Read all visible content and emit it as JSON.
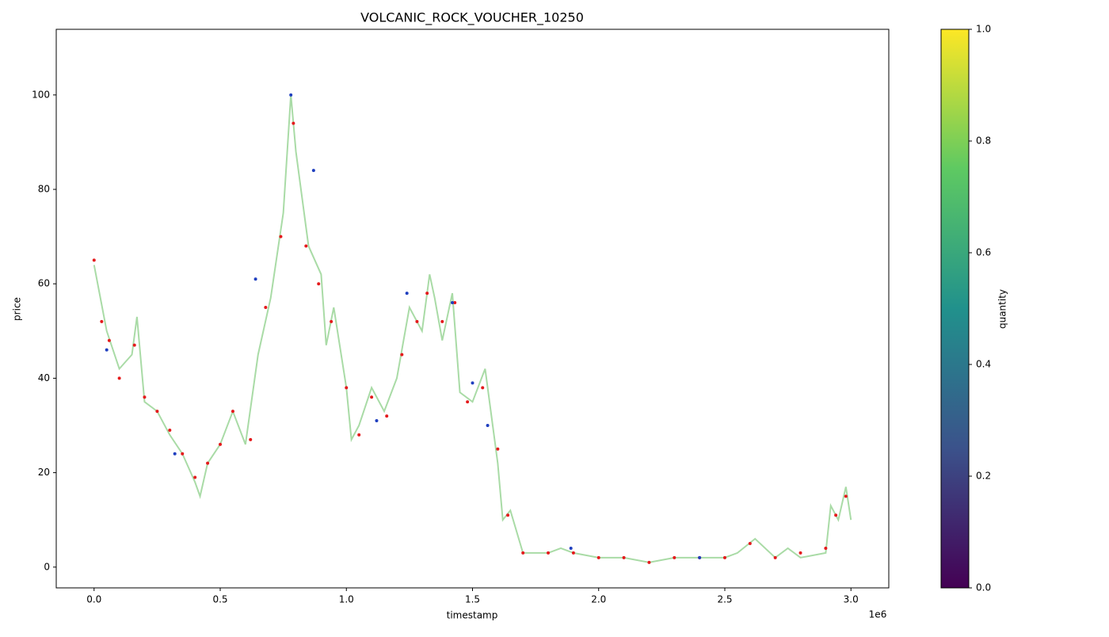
{
  "chart_data": {
    "type": "line",
    "title": "VOLCANIC_ROCK_VOUCHER_10250",
    "x_label": "timestamp",
    "y_label": "price",
    "x_offset_label": "1e6",
    "xlim": [
      -150000,
      3150000
    ],
    "ylim": [
      -4.4,
      113.9
    ],
    "xticks": [
      {
        "value": 0,
        "label": "0.0"
      },
      {
        "value": 500000,
        "label": "0.5"
      },
      {
        "value": 1000000,
        "label": "1.0"
      },
      {
        "value": 1500000,
        "label": "1.5"
      },
      {
        "value": 2000000,
        "label": "2.0"
      },
      {
        "value": 2500000,
        "label": "2.5"
      },
      {
        "value": 3000000,
        "label": "3.0"
      }
    ],
    "yticks": [
      0,
      20,
      40,
      60,
      80,
      100
    ],
    "series": [
      {
        "type": "line",
        "color": "#a9dba6",
        "x": [
          0,
          50000,
          100000,
          150000,
          170000,
          200000,
          250000,
          300000,
          350000,
          400000,
          420000,
          450000,
          500000,
          550000,
          600000,
          650000,
          700000,
          750000,
          780000,
          800000,
          850000,
          900000,
          920000,
          950000,
          1000000,
          1020000,
          1050000,
          1100000,
          1150000,
          1200000,
          1250000,
          1300000,
          1330000,
          1350000,
          1380000,
          1420000,
          1450000,
          1500000,
          1550000,
          1600000,
          1620000,
          1650000,
          1700000,
          1750000,
          1800000,
          1850000,
          1900000,
          2000000,
          2100000,
          2200000,
          2300000,
          2400000,
          2500000,
          2550000,
          2620000,
          2700000,
          2750000,
          2800000,
          2900000,
          2920000,
          2950000,
          2980000,
          3000000
        ],
        "values": [
          64,
          50,
          42,
          45,
          53,
          35,
          33,
          28,
          24,
          18,
          15,
          22,
          26,
          33,
          26,
          45,
          57,
          75,
          100,
          88,
          68,
          62,
          47,
          55,
          38,
          27,
          30,
          38,
          33,
          40,
          55,
          50,
          62,
          57,
          48,
          58,
          37,
          35,
          42,
          22,
          10,
          12,
          3,
          3,
          3,
          4,
          3,
          2,
          2,
          1,
          2,
          2,
          2,
          3,
          6,
          2,
          4,
          2,
          3,
          13,
          10,
          17,
          10
        ]
      },
      {
        "type": "scatter",
        "color": "#e41a1c",
        "x": [
          0,
          30000,
          60000,
          100000,
          160000,
          200000,
          250000,
          300000,
          350000,
          400000,
          450000,
          500000,
          550000,
          620000,
          680000,
          740000,
          790000,
          840000,
          890000,
          940000,
          1000000,
          1050000,
          1100000,
          1160000,
          1220000,
          1280000,
          1320000,
          1380000,
          1430000,
          1480000,
          1540000,
          1600000,
          1640000,
          1700000,
          1800000,
          1900000,
          2000000,
          2100000,
          2200000,
          2300000,
          2400000,
          2500000,
          2600000,
          2700000,
          2800000,
          2900000,
          2940000,
          2980000
        ],
        "values": [
          65,
          52,
          48,
          40,
          47,
          36,
          33,
          29,
          24,
          19,
          22,
          26,
          33,
          27,
          55,
          70,
          94,
          68,
          60,
          52,
          38,
          28,
          36,
          32,
          45,
          52,
          58,
          52,
          56,
          35,
          38,
          25,
          11,
          3,
          3,
          3,
          2,
          2,
          1,
          2,
          2,
          2,
          5,
          2,
          3,
          4,
          11,
          15
        ]
      },
      {
        "type": "scatter",
        "color": "#1f3fbf",
        "x": [
          50000,
          320000,
          640000,
          780000,
          870000,
          1120000,
          1240000,
          1420000,
          1500000,
          1560000,
          1890000,
          2400000
        ],
        "values": [
          46,
          24,
          61,
          100,
          84,
          31,
          58,
          56,
          39,
          30,
          4,
          2
        ]
      }
    ],
    "colorbar": {
      "label": "quantity",
      "lim": [
        0,
        1
      ],
      "ticks": [
        {
          "value": 0,
          "label": "0.0"
        },
        {
          "value": 0.2,
          "label": "0.2"
        },
        {
          "value": 0.4,
          "label": "0.4"
        },
        {
          "value": 0.6,
          "label": "0.6"
        },
        {
          "value": 0.8,
          "label": "0.8"
        },
        {
          "value": 1,
          "label": "1.0"
        }
      ]
    }
  }
}
